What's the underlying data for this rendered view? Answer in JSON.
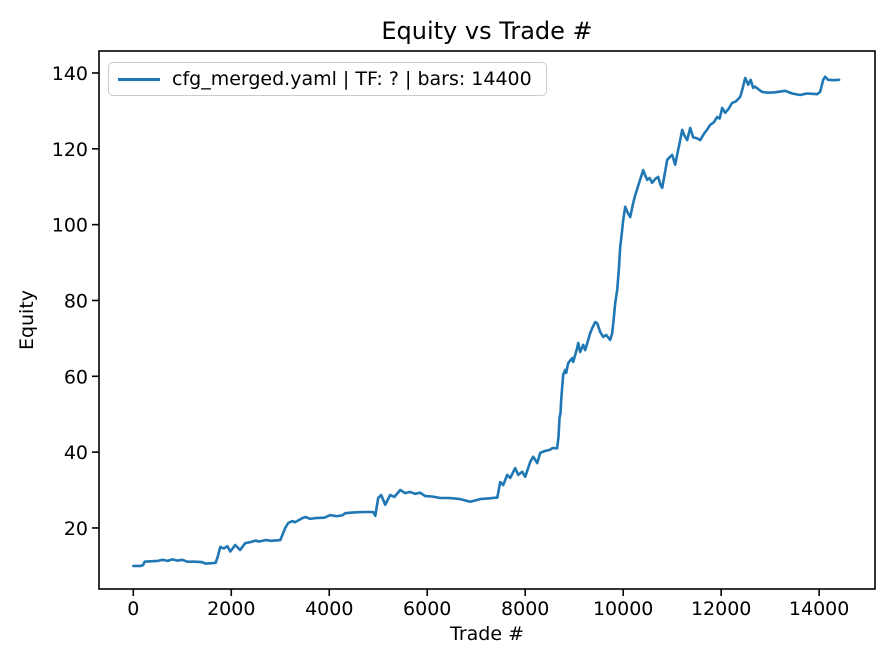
{
  "figure": {
    "background": "#ffffff"
  },
  "chart_data": {
    "type": "line",
    "title": "Equity vs Trade #",
    "xlabel": "Trade #",
    "ylabel": "Equity",
    "grid": false,
    "legend_position": "upper left",
    "axes_color": "#000000",
    "xlim": [
      -700,
      15140
    ],
    "ylim": [
      3.9,
      145.8
    ],
    "xticks": [
      0,
      2000,
      4000,
      6000,
      8000,
      10000,
      12000,
      14000
    ],
    "yticks": [
      20,
      40,
      60,
      80,
      100,
      120,
      140
    ],
    "series": [
      {
        "name": "cfg_merged.yaml | TF: ? | bars: 14400",
        "color": "#1f77b4",
        "points": [
          [
            0,
            10.0
          ],
          [
            150,
            10.0
          ],
          [
            200,
            10.2
          ],
          [
            230,
            11.1
          ],
          [
            350,
            11.2
          ],
          [
            500,
            11.3
          ],
          [
            600,
            11.6
          ],
          [
            700,
            11.3
          ],
          [
            800,
            11.7
          ],
          [
            900,
            11.4
          ],
          [
            1000,
            11.6
          ],
          [
            1100,
            11.1
          ],
          [
            1250,
            11.1
          ],
          [
            1400,
            11.0
          ],
          [
            1480,
            10.6
          ],
          [
            1600,
            10.7
          ],
          [
            1680,
            10.8
          ],
          [
            1720,
            12.3
          ],
          [
            1776,
            15.0
          ],
          [
            1850,
            14.6
          ],
          [
            1920,
            15.2
          ],
          [
            1980,
            13.8
          ],
          [
            2080,
            15.5
          ],
          [
            2180,
            14.2
          ],
          [
            2286,
            16.0
          ],
          [
            2400,
            16.3
          ],
          [
            2500,
            16.7
          ],
          [
            2560,
            16.4
          ],
          [
            2700,
            16.8
          ],
          [
            2820,
            16.6
          ],
          [
            3000,
            16.8
          ],
          [
            3100,
            20.0
          ],
          [
            3163,
            21.3
          ],
          [
            3245,
            21.8
          ],
          [
            3300,
            21.5
          ],
          [
            3449,
            22.6
          ],
          [
            3520,
            22.9
          ],
          [
            3612,
            22.4
          ],
          [
            3714,
            22.6
          ],
          [
            3900,
            22.7
          ],
          [
            4020,
            23.4
          ],
          [
            4150,
            23.1
          ],
          [
            4265,
            23.3
          ],
          [
            4327,
            23.9
          ],
          [
            4500,
            24.1
          ],
          [
            4700,
            24.2
          ],
          [
            4898,
            24.2
          ],
          [
            4939,
            23.2
          ],
          [
            5000,
            27.9
          ],
          [
            5061,
            28.7
          ],
          [
            5143,
            26.1
          ],
          [
            5245,
            28.7
          ],
          [
            5330,
            28.2
          ],
          [
            5450,
            30.0
          ],
          [
            5550,
            29.2
          ],
          [
            5650,
            29.5
          ],
          [
            5750,
            29.0
          ],
          [
            5857,
            29.3
          ],
          [
            5959,
            28.4
          ],
          [
            6100,
            28.3
          ],
          [
            6265,
            27.9
          ],
          [
            6450,
            27.9
          ],
          [
            6673,
            27.6
          ],
          [
            6878,
            26.9
          ],
          [
            7082,
            27.6
          ],
          [
            7250,
            27.8
          ],
          [
            7430,
            28.0
          ],
          [
            7490,
            32.1
          ],
          [
            7550,
            31.3
          ],
          [
            7633,
            34.0
          ],
          [
            7694,
            33.2
          ],
          [
            7796,
            35.8
          ],
          [
            7857,
            34.0
          ],
          [
            7939,
            34.8
          ],
          [
            8000,
            33.5
          ],
          [
            8102,
            37.4
          ],
          [
            8163,
            38.8
          ],
          [
            8245,
            37.1
          ],
          [
            8306,
            39.8
          ],
          [
            8400,
            40.3
          ],
          [
            8500,
            40.6
          ],
          [
            8560,
            41.1
          ],
          [
            8650,
            41.0
          ],
          [
            8680,
            44.0
          ],
          [
            8700,
            49.0
          ],
          [
            8720,
            50.3
          ],
          [
            8735,
            53.8
          ],
          [
            8755,
            57.2
          ],
          [
            8776,
            60.4
          ],
          [
            8816,
            61.7
          ],
          [
            8836,
            60.9
          ],
          [
            8877,
            63.5
          ],
          [
            8959,
            64.8
          ],
          [
            8980,
            63.8
          ],
          [
            9061,
            67.5
          ],
          [
            9082,
            68.8
          ],
          [
            9122,
            66.4
          ],
          [
            9184,
            68.3
          ],
          [
            9224,
            66.9
          ],
          [
            9327,
            71.4
          ],
          [
            9367,
            72.7
          ],
          [
            9429,
            74.3
          ],
          [
            9470,
            74.0
          ],
          [
            9531,
            71.7
          ],
          [
            9592,
            70.4
          ],
          [
            9653,
            70.9
          ],
          [
            9735,
            69.6
          ],
          [
            9776,
            71.4
          ],
          [
            9800,
            74.3
          ],
          [
            9837,
            79.3
          ],
          [
            9878,
            82.8
          ],
          [
            9910,
            88.0
          ],
          [
            9939,
            94.1
          ],
          [
            9970,
            97.5
          ],
          [
            10000,
            101.2
          ],
          [
            10041,
            104.7
          ],
          [
            10090,
            103.2
          ],
          [
            10143,
            102.0
          ],
          [
            10200,
            105.5
          ],
          [
            10245,
            107.8
          ],
          [
            10300,
            110.0
          ],
          [
            10350,
            112.0
          ],
          [
            10408,
            114.4
          ],
          [
            10450,
            113.0
          ],
          [
            10490,
            111.8
          ],
          [
            10540,
            112.3
          ],
          [
            10592,
            111.0
          ],
          [
            10650,
            112.0
          ],
          [
            10714,
            112.6
          ],
          [
            10760,
            110.5
          ],
          [
            10796,
            109.7
          ],
          [
            10850,
            113.5
          ],
          [
            10898,
            117.1
          ],
          [
            10950,
            117.8
          ],
          [
            11000,
            118.4
          ],
          [
            11061,
            115.8
          ],
          [
            11110,
            119.0
          ],
          [
            11163,
            122.3
          ],
          [
            11204,
            125.0
          ],
          [
            11250,
            123.5
          ],
          [
            11306,
            122.3
          ],
          [
            11367,
            125.5
          ],
          [
            11430,
            123.0
          ],
          [
            11500,
            122.8
          ],
          [
            11571,
            122.3
          ],
          [
            11650,
            124.0
          ],
          [
            11720,
            125.2
          ],
          [
            11775,
            126.3
          ],
          [
            11850,
            127.0
          ],
          [
            11918,
            128.4
          ],
          [
            11970,
            128.0
          ],
          [
            12020,
            130.8
          ],
          [
            12082,
            129.5
          ],
          [
            12150,
            130.5
          ],
          [
            12224,
            132.1
          ],
          [
            12300,
            132.5
          ],
          [
            12388,
            133.7
          ],
          [
            12430,
            135.5
          ],
          [
            12490,
            138.7
          ],
          [
            12551,
            136.9
          ],
          [
            12600,
            138.2
          ],
          [
            12653,
            136.1
          ],
          [
            12694,
            136.4
          ],
          [
            12750,
            135.8
          ],
          [
            12837,
            135.0
          ],
          [
            12950,
            134.8
          ],
          [
            13100,
            134.9
          ],
          [
            13306,
            135.3
          ],
          [
            13450,
            134.6
          ],
          [
            13612,
            134.2
          ],
          [
            13750,
            134.6
          ],
          [
            13860,
            134.5
          ],
          [
            13959,
            134.4
          ],
          [
            14020,
            135.0
          ],
          [
            14082,
            138.2
          ],
          [
            14122,
            139.0
          ],
          [
            14184,
            138.2
          ],
          [
            14300,
            138.1
          ],
          [
            14408,
            138.2
          ]
        ]
      }
    ]
  }
}
